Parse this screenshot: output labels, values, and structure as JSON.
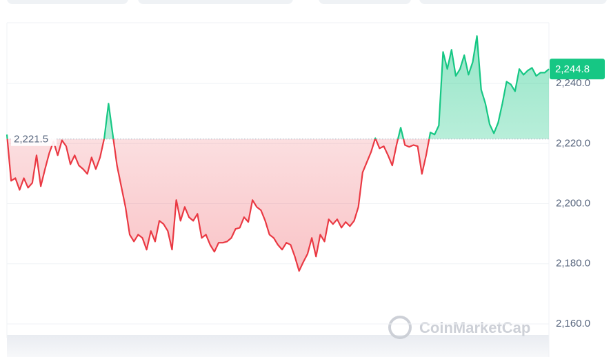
{
  "chart_data": {
    "type": "line",
    "values": [
      2223.0,
      2207.6,
      2208.5,
      2204.6,
      2208.5,
      2205.3,
      2206.9,
      2216.1,
      2205.8,
      2211.5,
      2216.8,
      2220.7,
      2216.1,
      2221.1,
      2219.1,
      2213.1,
      2216.1,
      2212.7,
      2211.5,
      2209.9,
      2215.4,
      2211.5,
      2215.4,
      2221.8,
      2233.3,
      2223.0,
      2212.7,
      2205.8,
      2198.9,
      2189.7,
      2187.4,
      2189.7,
      2188.6,
      2184.7,
      2190.9,
      2187.4,
      2194.3,
      2193.2,
      2190.9,
      2184.7,
      2201.2,
      2194.3,
      2198.9,
      2195.5,
      2194.3,
      2196.6,
      2188.6,
      2189.7,
      2186.3,
      2184.0,
      2187.0,
      2187.0,
      2187.4,
      2188.6,
      2191.6,
      2192.0,
      2195.5,
      2193.9,
      2201.2,
      2198.9,
      2197.8,
      2194.3,
      2189.7,
      2188.6,
      2186.3,
      2184.7,
      2187.0,
      2186.3,
      2182.4,
      2177.6,
      2180.6,
      2183.3,
      2188.6,
      2182.4,
      2189.7,
      2187.4,
      2194.8,
      2193.2,
      2194.8,
      2192.0,
      2193.9,
      2192.5,
      2194.3,
      2198.9,
      2210.4,
      2213.8,
      2217.2,
      2221.8,
      2218.4,
      2219.1,
      2216.1,
      2212.7,
      2219.5,
      2225.3,
      2219.5,
      2218.9,
      2219.5,
      2219.1,
      2209.9,
      2216.1,
      2223.7,
      2223.0,
      2226.0,
      2250.5,
      2244.8,
      2251.2,
      2242.5,
      2244.8,
      2249.4,
      2242.9,
      2247.1,
      2255.8,
      2237.9,
      2233.3,
      2226.4,
      2223.4,
      2226.9,
      2233.3,
      2240.6,
      2239.7,
      2237.4,
      2244.8,
      2242.9,
      2244.3,
      2245.2,
      2242.5,
      2243.6,
      2243.6,
      2244.8
    ],
    "baseline": {
      "value": 2221.5,
      "label": "2,221.5"
    },
    "last_price": {
      "value": 2244.8,
      "label": "2,244.8"
    },
    "up_color": "#16c784",
    "down_color": "#ea3943",
    "ylim": [
      2155.4,
      2260.2
    ],
    "yticks": [
      {
        "value": 2160,
        "label": "2,160.0"
      },
      {
        "value": 2180,
        "label": "2,180.0"
      },
      {
        "value": 2200,
        "label": "2,200.0"
      },
      {
        "value": 2220,
        "label": "2,220.0"
      },
      {
        "value": 2240,
        "label": "2,240.0"
      }
    ],
    "grid": true,
    "watermark": "CoinMarketCap"
  }
}
